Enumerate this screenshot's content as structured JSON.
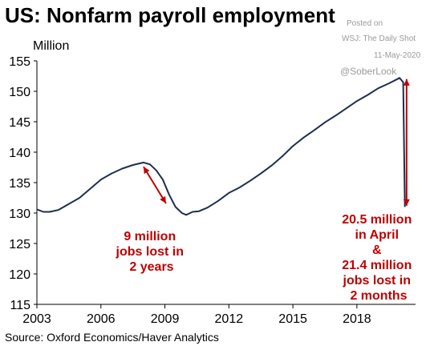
{
  "title": "US: Nonfarm payroll employment",
  "unit_label": "Million",
  "source": "Source: Oxford Economics/Haver Analytics",
  "watermark": {
    "posted_on": "Posted on",
    "publication": "WSJ: The Daily Shot",
    "date": "11-May-2020",
    "handle": "@SoberLook"
  },
  "annotations": {
    "recession_2008": [
      "9 million",
      "jobs lost in",
      "2 years"
    ],
    "covid_2020": [
      "20.5 million",
      "in April",
      "&",
      "21.4 million",
      "jobs lost in",
      "2 months"
    ]
  },
  "colors": {
    "line": "#1f2d4f",
    "annotation": "#c00000",
    "axis": "#000000"
  },
  "chart_data": {
    "type": "line",
    "title": "US: Nonfarm payroll employment",
    "ylabel": "Million",
    "xlim": [
      2003.0,
      2020.75
    ],
    "ylim": [
      115,
      155
    ],
    "y_ticks": [
      115,
      120,
      125,
      130,
      135,
      140,
      145,
      150,
      155
    ],
    "x_ticks": [
      2003,
      2006,
      2009,
      2012,
      2015,
      2018
    ],
    "grid": false,
    "legend": "none",
    "series": [
      {
        "x": [
          2003.0,
          2003.3,
          2003.6,
          2004.0,
          2004.5,
          2005.0,
          2005.5,
          2006.0,
          2006.5,
          2007.0,
          2007.5,
          2008.0,
          2008.3,
          2008.6,
          2008.9,
          2009.2,
          2009.5,
          2009.8,
          2010.0,
          2010.3,
          2010.6,
          2011.0,
          2011.5,
          2012.0,
          2012.5,
          2013.0,
          2013.5,
          2014.0,
          2014.5,
          2015.0,
          2015.5,
          2016.0,
          2016.5,
          2017.0,
          2017.5,
          2018.0,
          2018.5,
          2019.0,
          2019.5,
          2020.0,
          2020.17,
          2020.25
        ],
        "values": [
          130.6,
          130.2,
          130.2,
          130.5,
          131.5,
          132.5,
          134.0,
          135.5,
          136.5,
          137.3,
          137.9,
          138.3,
          138.0,
          137.0,
          135.5,
          133.0,
          131.0,
          130.0,
          129.7,
          130.2,
          130.3,
          130.9,
          132.0,
          133.3,
          134.2,
          135.3,
          136.5,
          137.8,
          139.3,
          141.0,
          142.4,
          143.6,
          144.9,
          146.0,
          147.2,
          148.4,
          149.4,
          150.5,
          151.3,
          152.2,
          151.5,
          131.0
        ]
      }
    ]
  }
}
